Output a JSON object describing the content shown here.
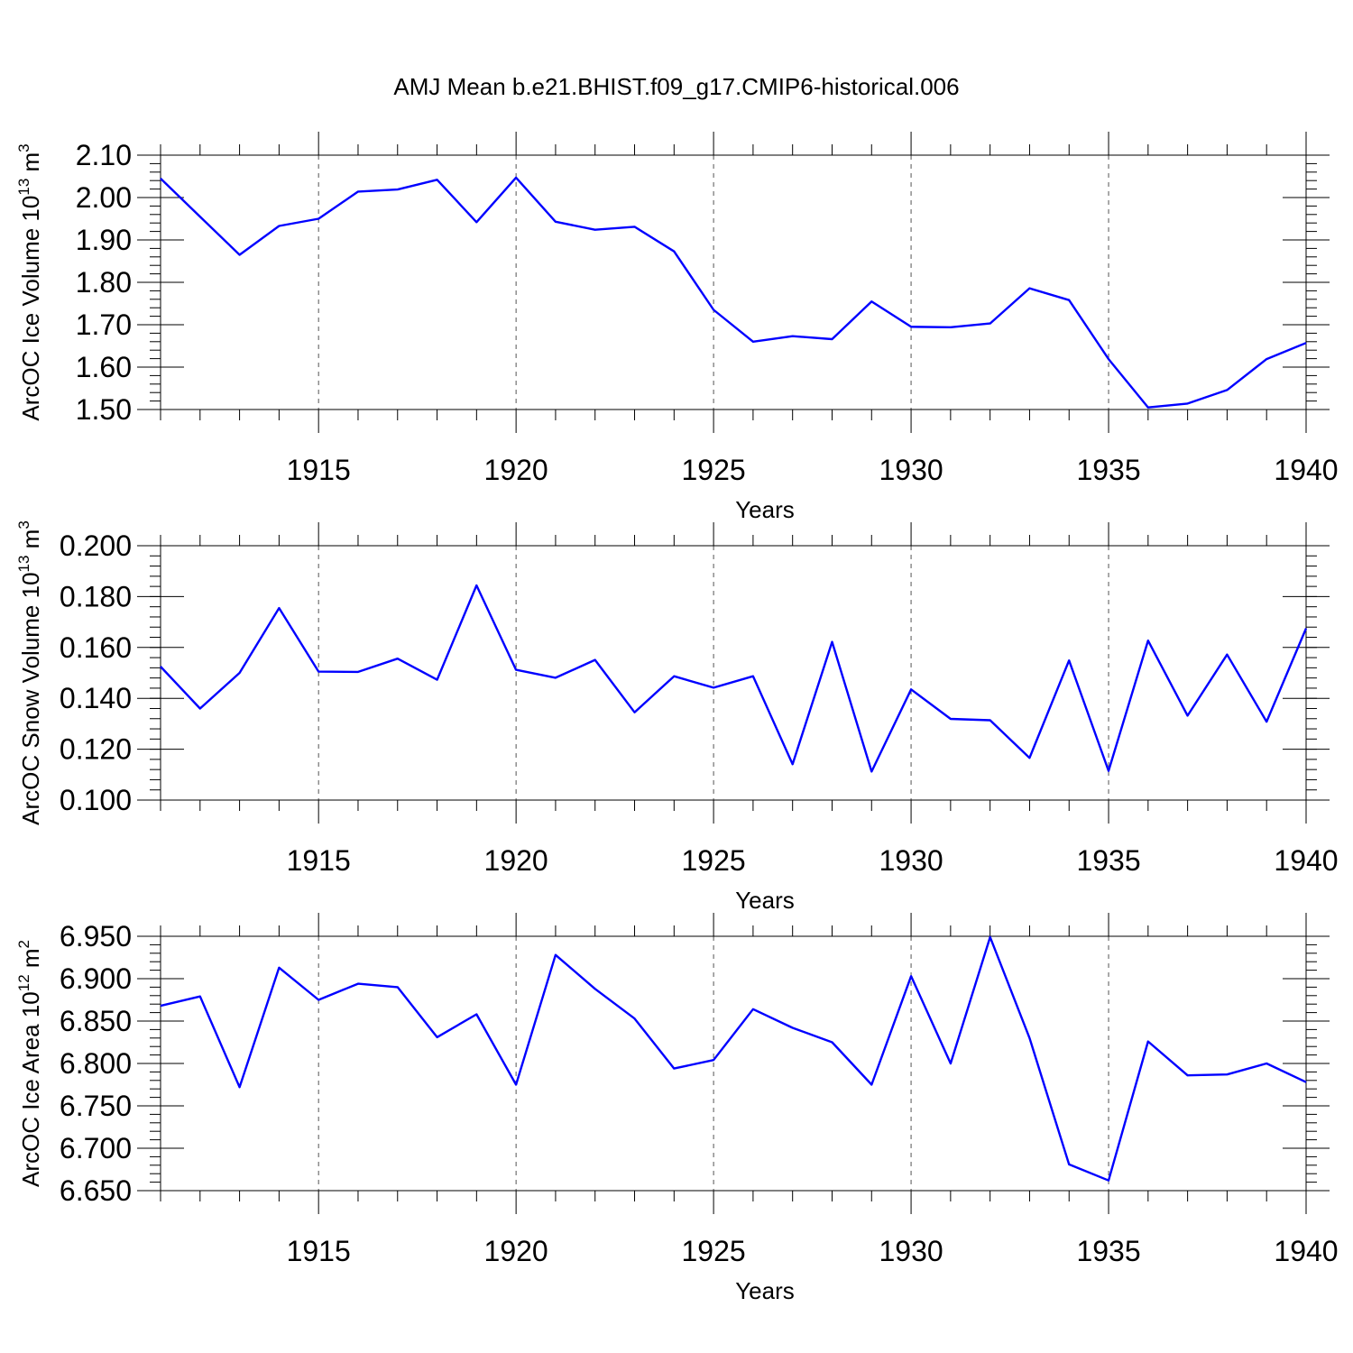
{
  "figure_title": "AMJ Mean b.e21.BHIST.f09_g17.CMIP6-historical.006",
  "colors": {
    "line": "#0000ff",
    "axis": "#000000",
    "grid": "#555555"
  },
  "chart_data": [
    {
      "type": "line",
      "xlabel": "Years",
      "ylabel_main": "ArcOC Ice Volume 10",
      "ylabel_exp": "13",
      "ylabel_unit": " m",
      "ylabel_unit_exp": "3",
      "xlim": [
        1911,
        1940
      ],
      "ylim": [
        1.5,
        2.1
      ],
      "xticks": [
        1915,
        1920,
        1925,
        1930,
        1935,
        1940
      ],
      "xtick_labels": [
        "1915",
        "1920",
        "1925",
        "1930",
        "1935",
        "1940"
      ],
      "yticks": [
        1.5,
        1.6,
        1.7,
        1.8,
        1.9,
        2.0,
        2.1
      ],
      "ytick_labels": [
        "1.50",
        "1.60",
        "1.70",
        "1.80",
        "1.90",
        "2.00",
        "2.10"
      ],
      "grid": "vertical dashed at labeled years",
      "x": [
        1911,
        1912,
        1913,
        1914,
        1915,
        1916,
        1917,
        1918,
        1919,
        1920,
        1921,
        1922,
        1923,
        1924,
        1925,
        1926,
        1927,
        1928,
        1929,
        1930,
        1931,
        1932,
        1933,
        1934,
        1935,
        1936,
        1937,
        1938,
        1939,
        1940
      ],
      "values": [
        2.045,
        1.955,
        1.865,
        1.933,
        1.95,
        2.014,
        2.019,
        2.042,
        1.942,
        2.047,
        1.943,
        1.924,
        1.931,
        1.873,
        1.735,
        1.66,
        1.673,
        1.666,
        1.755,
        1.695,
        1.694,
        1.703,
        1.786,
        1.758,
        1.619,
        1.505,
        1.514,
        1.546,
        1.619,
        1.657
      ]
    },
    {
      "type": "line",
      "xlabel": "Years",
      "ylabel_main": "ArcOC Snow Volume 10",
      "ylabel_exp": "13",
      "ylabel_unit": " m",
      "ylabel_unit_exp": "3",
      "xlim": [
        1911,
        1940
      ],
      "ylim": [
        0.1,
        0.2
      ],
      "xticks": [
        1915,
        1920,
        1925,
        1930,
        1935,
        1940
      ],
      "xtick_labels": [
        "1915",
        "1920",
        "1925",
        "1930",
        "1935",
        "1940"
      ],
      "yticks": [
        0.1,
        0.12,
        0.14,
        0.16,
        0.18,
        0.2
      ],
      "ytick_labels": [
        "0.100",
        "0.120",
        "0.140",
        "0.160",
        "0.180",
        "0.200"
      ],
      "grid": "vertical dashed at labeled years",
      "x": [
        1911,
        1912,
        1913,
        1914,
        1915,
        1916,
        1917,
        1918,
        1919,
        1920,
        1921,
        1922,
        1923,
        1924,
        1925,
        1926,
        1927,
        1928,
        1929,
        1930,
        1931,
        1932,
        1933,
        1934,
        1935,
        1936,
        1937,
        1938,
        1939,
        1940
      ],
      "values": [
        0.1525,
        0.136,
        0.15,
        0.1755,
        0.1505,
        0.1504,
        0.1556,
        0.1473,
        0.1844,
        0.1512,
        0.1481,
        0.1551,
        0.1345,
        0.1487,
        0.1442,
        0.1487,
        0.1141,
        0.1622,
        0.1112,
        0.1435,
        0.1319,
        0.1314,
        0.1166,
        0.1549,
        0.1115,
        0.1627,
        0.1332,
        0.1572,
        0.1308,
        0.1675
      ]
    },
    {
      "type": "line",
      "xlabel": "Years",
      "ylabel_main": "ArcOC Ice Area 10",
      "ylabel_exp": "12",
      "ylabel_unit": " m",
      "ylabel_unit_exp": "2",
      "xlim": [
        1911,
        1940
      ],
      "ylim": [
        6.65,
        6.95
      ],
      "xticks": [
        1915,
        1920,
        1925,
        1930,
        1935,
        1940
      ],
      "xtick_labels": [
        "1915",
        "1920",
        "1925",
        "1930",
        "1935",
        "1940"
      ],
      "yticks": [
        6.65,
        6.7,
        6.75,
        6.8,
        6.85,
        6.9,
        6.95
      ],
      "ytick_labels": [
        "6.650",
        "6.700",
        "6.750",
        "6.800",
        "6.850",
        "6.900",
        "6.950"
      ],
      "grid": "vertical dashed at labeled years",
      "x": [
        1911,
        1912,
        1913,
        1914,
        1915,
        1916,
        1917,
        1918,
        1919,
        1920,
        1921,
        1922,
        1923,
        1924,
        1925,
        1926,
        1927,
        1928,
        1929,
        1930,
        1931,
        1932,
        1933,
        1934,
        1935,
        1936,
        1937,
        1938,
        1939,
        1940
      ],
      "values": [
        6.868,
        6.879,
        6.772,
        6.913,
        6.875,
        6.894,
        6.89,
        6.831,
        6.858,
        6.775,
        6.928,
        6.888,
        6.853,
        6.794,
        6.804,
        6.864,
        6.842,
        6.825,
        6.775,
        6.903,
        6.8,
        6.949,
        6.83,
        6.681,
        6.662,
        6.826,
        6.786,
        6.787,
        6.8,
        6.778
      ]
    }
  ]
}
